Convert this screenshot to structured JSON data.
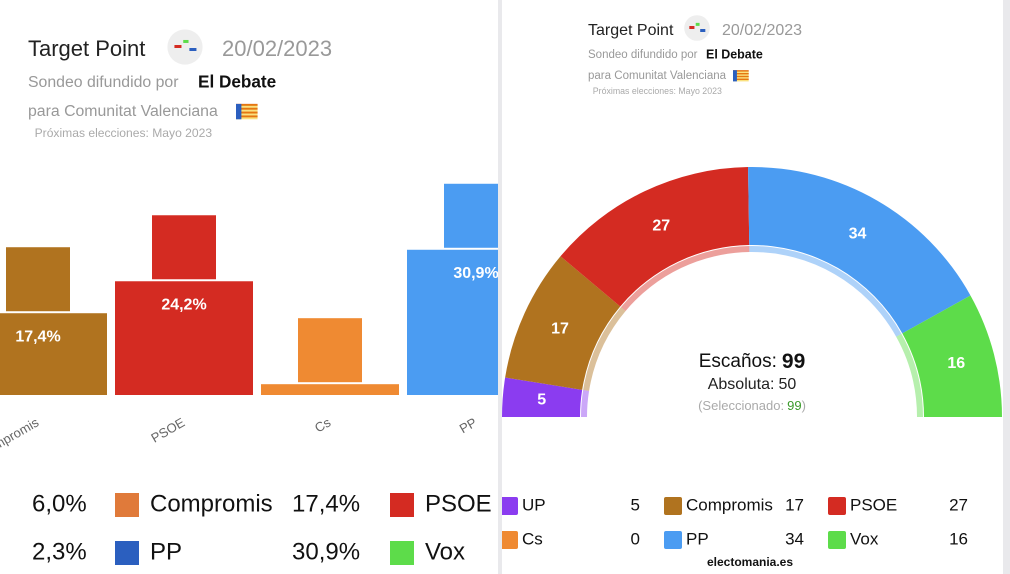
{
  "chart_data": [
    {
      "type": "bar",
      "title": "Target Point",
      "date": "20/02/2023",
      "subtitle": "Sondeo difundido por",
      "source": "El Debate",
      "region": "para Comunitat Valenciana",
      "note": "Próximas elecciones: Mayo 2023",
      "categories": [
        "Compromis",
        "PSOE",
        "Cs",
        "PP"
      ],
      "values": [
        17.4,
        24.2,
        2.3,
        30.9
      ],
      "value_labels": [
        "17,4%",
        "24,2%",
        null,
        "30,9%"
      ],
      "colors": [
        "#b0731f",
        "#d42b22",
        "#ef8a32",
        "#4b9cf2"
      ],
      "legend_rows": [
        [
          "6,0%",
          "Compromis",
          "17,4%",
          "PSOE"
        ],
        [
          "2,3%",
          "PP",
          "30,9%",
          "Vox"
        ]
      ]
    },
    {
      "type": "hemicycle",
      "title": "Target Point",
      "date": "20/02/2023",
      "subtitle": "Sondeo difundido por",
      "source": "El Debate",
      "region": "para Comunitat Valenciana",
      "note": "Próximas elecciones: Mayo 2023",
      "total_label": "Escaños:",
      "total": 99,
      "majority_label": "Absoluta:",
      "majority": 50,
      "selected_label": "(Seleccionado:",
      "selected": 99,
      "selected_suffix": ")",
      "categories": [
        "UP",
        "Compromis",
        "PSOE",
        "PP",
        "Vox",
        "Cs"
      ],
      "values": [
        5,
        17,
        27,
        34,
        16,
        0
      ],
      "colors": [
        "#8b3cf0",
        "#b0731f",
        "#d42b22",
        "#4b9cf2",
        "#5ddc4a",
        "#ef8a32"
      ],
      "footer": "electomania.es"
    }
  ]
}
